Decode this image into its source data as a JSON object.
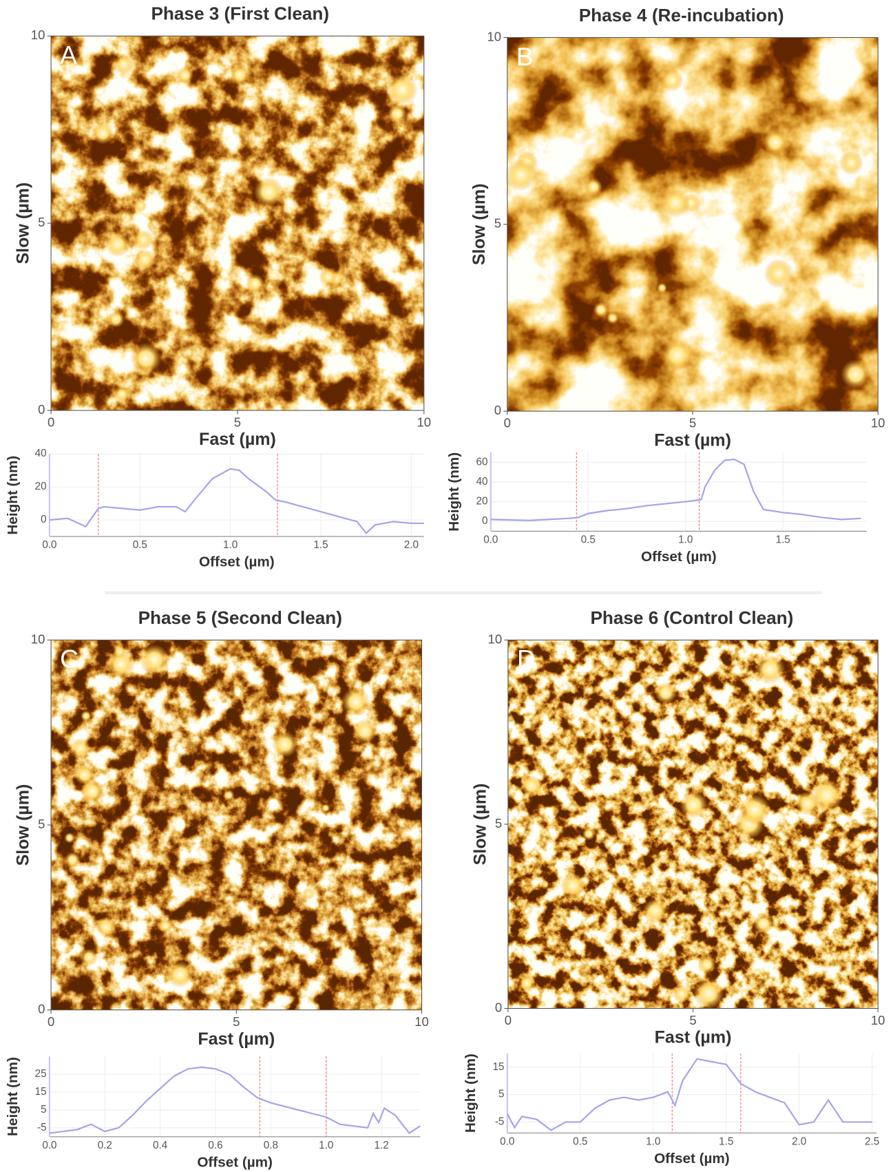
{
  "chart_data": [
    {
      "type": "image",
      "title": "Phase 3 (First Clean)",
      "panel_label": "A",
      "xlabel": "Fast (µm)",
      "ylabel": "Slow (µm)",
      "xlim": [
        0,
        10
      ],
      "ylim": [
        0,
        10
      ],
      "xticks": [
        0,
        5,
        10
      ],
      "yticks": [
        0,
        5,
        10
      ]
    },
    {
      "type": "line",
      "xlabel": "Offset (µm)",
      "ylabel": "Height (nm)",
      "color": "#a3a3ea",
      "cursor_color": "#e86a6a",
      "x": [
        0,
        0.1,
        0.2,
        0.27,
        0.3,
        0.4,
        0.5,
        0.6,
        0.7,
        0.75,
        0.8,
        0.9,
        1.0,
        1.05,
        1.1,
        1.2,
        1.25,
        1.3,
        1.4,
        1.5,
        1.6,
        1.7,
        1.75,
        1.8,
        1.9,
        2.0,
        2.07
      ],
      "values": [
        0,
        1,
        -4,
        7,
        8,
        7,
        6,
        8,
        8,
        5,
        12,
        25,
        31,
        30,
        25,
        17,
        12,
        11,
        8,
        5,
        2,
        -1,
        -8,
        -3,
        -1,
        -2,
        -2
      ],
      "cursors": [
        0.27,
        1.26
      ],
      "xlim": [
        0,
        2.07
      ],
      "ylim": [
        -10,
        40
      ],
      "yticks": [
        0,
        20,
        40
      ],
      "xticks": [
        {
          "value": 0,
          "label": "0.0"
        },
        0.5,
        {
          "value": 1,
          "label": "1.0"
        },
        1.5,
        {
          "value": 2,
          "label": "2.0"
        }
      ],
      "grid": true
    },
    {
      "type": "image",
      "title": "Phase 4 (Re-incubation)",
      "panel_label": "B",
      "xlabel": "Fast (µm)",
      "ylabel": "Slow (µm)",
      "xlim": [
        0,
        10
      ],
      "ylim": [
        0,
        10
      ],
      "xticks": [
        0,
        5,
        10
      ],
      "yticks": [
        0,
        5,
        10
      ]
    },
    {
      "type": "line",
      "xlabel": "Offset (µm)",
      "ylabel": "Height (nm)",
      "color": "#a3a3ea",
      "cursor_color": "#e86a6a",
      "x": [
        0,
        0.2,
        0.4,
        0.45,
        0.5,
        0.6,
        0.7,
        0.8,
        0.9,
        1.0,
        1.08,
        1.1,
        1.15,
        1.2,
        1.25,
        1.3,
        1.35,
        1.4,
        1.5,
        1.6,
        1.7,
        1.8,
        1.9
      ],
      "values": [
        2,
        1,
        3,
        4,
        8,
        11,
        13,
        16,
        18,
        20,
        22,
        35,
        52,
        62,
        63,
        58,
        30,
        12,
        9,
        7,
        4,
        2,
        3
      ],
      "cursors": [
        0.44,
        1.07
      ],
      "xlim": [
        0,
        1.93
      ],
      "ylim": [
        -10,
        70
      ],
      "yticks": [
        0,
        20,
        40,
        60
      ],
      "xticks": [
        {
          "value": 0,
          "label": "0.0"
        },
        0.5,
        {
          "value": 1,
          "label": "1.0"
        },
        1.5
      ],
      "grid": true
    },
    {
      "type": "image",
      "title": "Phase 5 (Second Clean)",
      "panel_label": "C",
      "xlabel": "Fast (µm)",
      "ylabel": "Slow (µm)",
      "xlim": [
        0,
        10
      ],
      "ylim": [
        0,
        10
      ],
      "xticks": [
        0,
        5,
        10
      ],
      "yticks": [
        0,
        5,
        10
      ]
    },
    {
      "type": "line",
      "xlabel": "Offset (µm)",
      "ylabel": "Height (nm)",
      "color": "#a3a3ea",
      "cursor_color": "#e86a6a",
      "x": [
        0,
        0.1,
        0.15,
        0.2,
        0.25,
        0.3,
        0.35,
        0.4,
        0.45,
        0.5,
        0.55,
        0.6,
        0.65,
        0.7,
        0.75,
        0.8,
        0.85,
        0.9,
        0.95,
        1.0,
        1.05,
        1.1,
        1.15,
        1.17,
        1.19,
        1.21,
        1.25,
        1.3,
        1.34
      ],
      "values": [
        -8,
        -6,
        -3,
        -7,
        -5,
        2,
        10,
        17,
        24,
        28,
        29,
        28,
        25,
        18,
        12,
        9,
        7,
        5,
        3,
        1,
        -3,
        -4,
        -5,
        3,
        -2,
        6,
        2,
        -8,
        -4
      ],
      "cursors": [
        0.76,
        1.0
      ],
      "xlim": [
        0,
        1.34
      ],
      "ylim": [
        -10,
        35
      ],
      "yticks": [
        -5,
        5,
        15,
        25
      ],
      "xticks": [
        {
          "value": 0,
          "label": "0.0"
        },
        0.2,
        0.4,
        0.6,
        0.8,
        {
          "value": 1,
          "label": "1.0"
        },
        1.2
      ],
      "grid": true
    },
    {
      "type": "image",
      "title": "Phase 6 (Control Clean)",
      "panel_label": "D",
      "xlabel": "Fast (µm)",
      "ylabel": "Slow (µm)",
      "xlim": [
        0,
        10
      ],
      "ylim": [
        0,
        10
      ],
      "xticks": [
        0,
        5,
        10
      ],
      "yticks": [
        0,
        5,
        10
      ]
    },
    {
      "type": "line",
      "xlabel": "Offset (µm)",
      "ylabel": "Height (nm)",
      "color": "#a3a3ea",
      "cursor_color": "#e86a6a",
      "x": [
        0,
        0.05,
        0.1,
        0.2,
        0.3,
        0.4,
        0.5,
        0.6,
        0.7,
        0.8,
        0.9,
        1.0,
        1.1,
        1.15,
        1.2,
        1.3,
        1.4,
        1.5,
        1.6,
        1.7,
        1.8,
        1.9,
        2.0,
        2.1,
        2.2,
        2.3,
        2.4,
        2.5
      ],
      "values": [
        -2,
        -7,
        -3,
        -4,
        -8,
        -5,
        -5,
        0,
        3,
        4,
        3,
        4,
        6,
        1,
        10,
        18,
        17,
        16,
        9,
        6,
        4,
        2,
        -6,
        -5,
        3,
        -5,
        -5,
        -5
      ],
      "cursors": [
        1.13,
        1.6
      ],
      "xlim": [
        0,
        2.53
      ],
      "ylim": [
        -9,
        20
      ],
      "yticks": [
        -5,
        5,
        15
      ],
      "xticks": [
        {
          "value": 0,
          "label": "0.0"
        },
        0.5,
        {
          "value": 1,
          "label": "1.0"
        },
        1.5,
        {
          "value": 2,
          "label": "2.0"
        },
        2.5
      ],
      "grid": true
    }
  ]
}
